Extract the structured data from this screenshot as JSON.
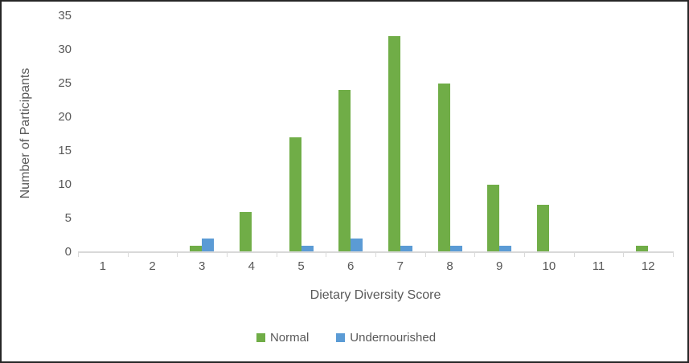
{
  "chart_data": {
    "type": "bar",
    "title": "",
    "xlabel": "Dietary Diversity Score",
    "ylabel": "Number of Participants",
    "categories": [
      "1",
      "2",
      "3",
      "4",
      "5",
      "6",
      "7",
      "8",
      "9",
      "10",
      "11",
      "12"
    ],
    "series": [
      {
        "name": "Normal",
        "color": "#70AD47",
        "values": [
          0,
          0,
          1,
          6,
          17,
          24,
          32,
          25,
          10,
          7,
          0,
          1
        ]
      },
      {
        "name": "Undernourished",
        "color": "#5B9BD5",
        "values": [
          0,
          0,
          2,
          0,
          1,
          2,
          1,
          1,
          1,
          0,
          0,
          0
        ]
      }
    ],
    "ylim": [
      0,
      35
    ],
    "ytick_step": 5,
    "yticks": [
      "0",
      "5",
      "10",
      "15",
      "20",
      "25",
      "30",
      "35"
    ],
    "grid": "off",
    "legend_position": "bottom-center",
    "axis_color": "#D9D9D9",
    "text_color": "#595959"
  }
}
